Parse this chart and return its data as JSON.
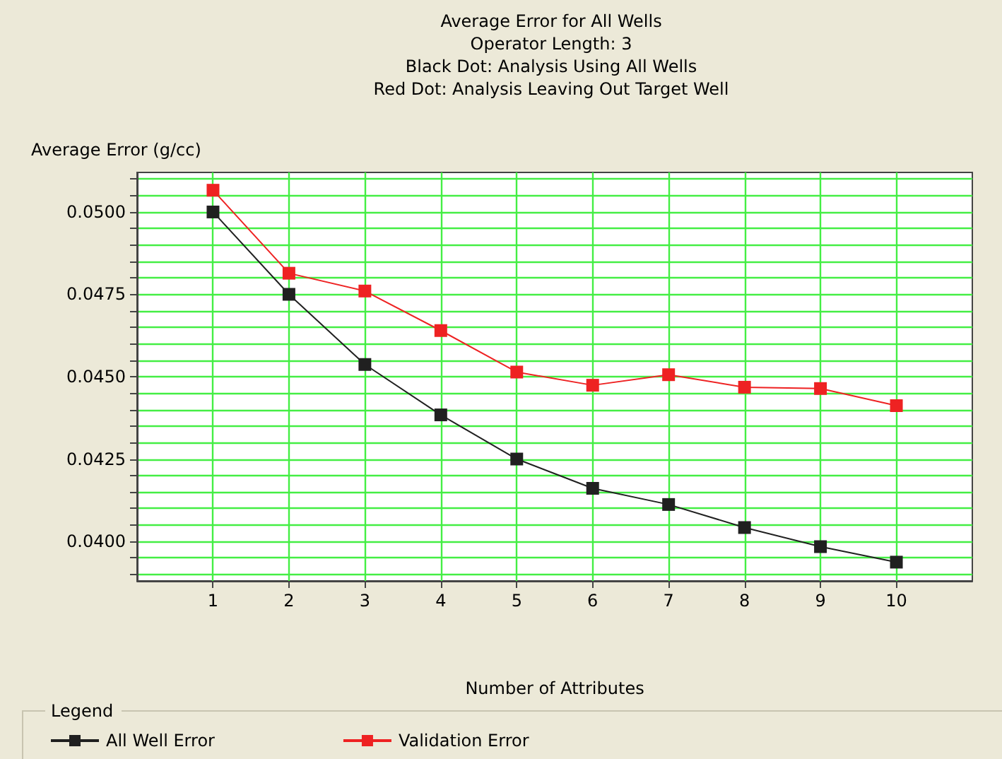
{
  "chart_data": {
    "type": "line",
    "title": "Average Error for All Wells",
    "subtitle": "Operator Length: 3\nBlack Dot: Analysis Using All Wells\nRed Dot: Analysis Leaving Out Target Well",
    "xlabel": "Number of Attributes",
    "ylabel": "Average Error (g/cc)",
    "legend_title": "Legend",
    "x": [
      1,
      2,
      3,
      4,
      5,
      6,
      7,
      8,
      9,
      10
    ],
    "series": [
      {
        "name": "All Well Error",
        "color": "#202020",
        "values": [
          0.05,
          0.0475,
          0.04537,
          0.04384,
          0.0425,
          0.04161,
          0.04112,
          0.04042,
          0.03984,
          0.03937
        ]
      },
      {
        "name": "Validation Error",
        "color": "#ee2222",
        "values": [
          0.05066,
          0.04814,
          0.0476,
          0.0464,
          0.04514,
          0.04474,
          0.04506,
          0.04468,
          0.04464,
          0.04412
        ]
      }
    ],
    "xlim": [
      0,
      11
    ],
    "xticks": [
      1,
      2,
      3,
      4,
      5,
      6,
      7,
      8,
      9,
      10
    ],
    "ylim": [
      0.0388,
      0.0512
    ],
    "yticks": [
      {
        "value": 0.039,
        "label": null
      },
      {
        "value": 0.0395,
        "label": null
      },
      {
        "value": 0.04,
        "label": "0.0400"
      },
      {
        "value": 0.0405,
        "label": null
      },
      {
        "value": 0.041,
        "label": null
      },
      {
        "value": 0.0415,
        "label": null
      },
      {
        "value": 0.042,
        "label": null
      },
      {
        "value": 0.0425,
        "label": "0.0425"
      },
      {
        "value": 0.043,
        "label": null
      },
      {
        "value": 0.0435,
        "label": null
      },
      {
        "value": 0.044,
        "label": null
      },
      {
        "value": 0.0445,
        "label": null
      },
      {
        "value": 0.045,
        "label": "0.0450"
      },
      {
        "value": 0.0455,
        "label": null
      },
      {
        "value": 0.046,
        "label": null
      },
      {
        "value": 0.0465,
        "label": null
      },
      {
        "value": 0.047,
        "label": null
      },
      {
        "value": 0.0475,
        "label": "0.0475"
      },
      {
        "value": 0.048,
        "label": null
      },
      {
        "value": 0.0485,
        "label": null
      },
      {
        "value": 0.049,
        "label": null
      },
      {
        "value": 0.0495,
        "label": null
      },
      {
        "value": 0.05,
        "label": "0.0500"
      },
      {
        "value": 0.0505,
        "label": null
      },
      {
        "value": 0.051,
        "label": null
      }
    ],
    "grid": true,
    "legend": "bottom",
    "marker": "square",
    "line_style": "solid"
  }
}
